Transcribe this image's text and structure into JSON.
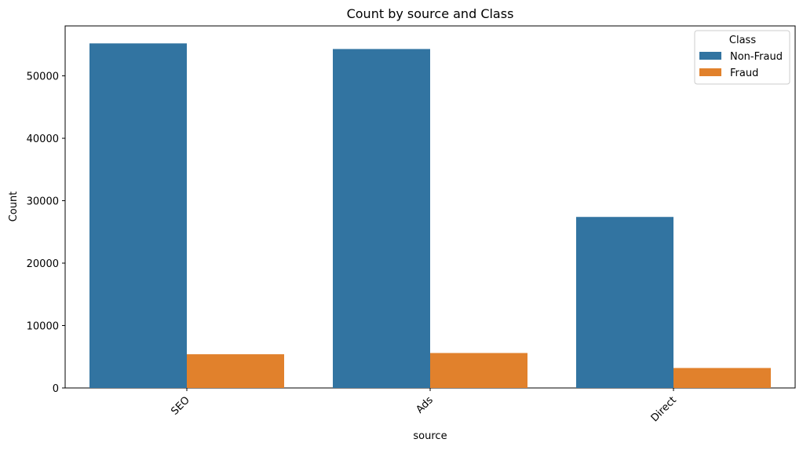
{
  "chart_data": {
    "type": "bar",
    "title": "Count by source and Class",
    "xlabel": "source",
    "ylabel": "Count",
    "categories": [
      "SEO",
      "Ads",
      "Direct"
    ],
    "series": [
      {
        "name": "Non-Fraud",
        "values": [
          55200,
          54300,
          27400
        ],
        "color": "#3274a1"
      },
      {
        "name": "Fraud",
        "values": [
          5400,
          5600,
          3200
        ],
        "color": "#e1812c"
      }
    ],
    "yticks": [
      "0",
      "10000",
      "20000",
      "30000",
      "40000",
      "50000"
    ],
    "ytick_values": [
      0,
      10000,
      20000,
      30000,
      40000,
      50000
    ],
    "ylim": [
      0,
      58000
    ],
    "legend": {
      "title": "Class",
      "position": "top-right"
    },
    "grid": false,
    "xtick_rotation": 45
  }
}
